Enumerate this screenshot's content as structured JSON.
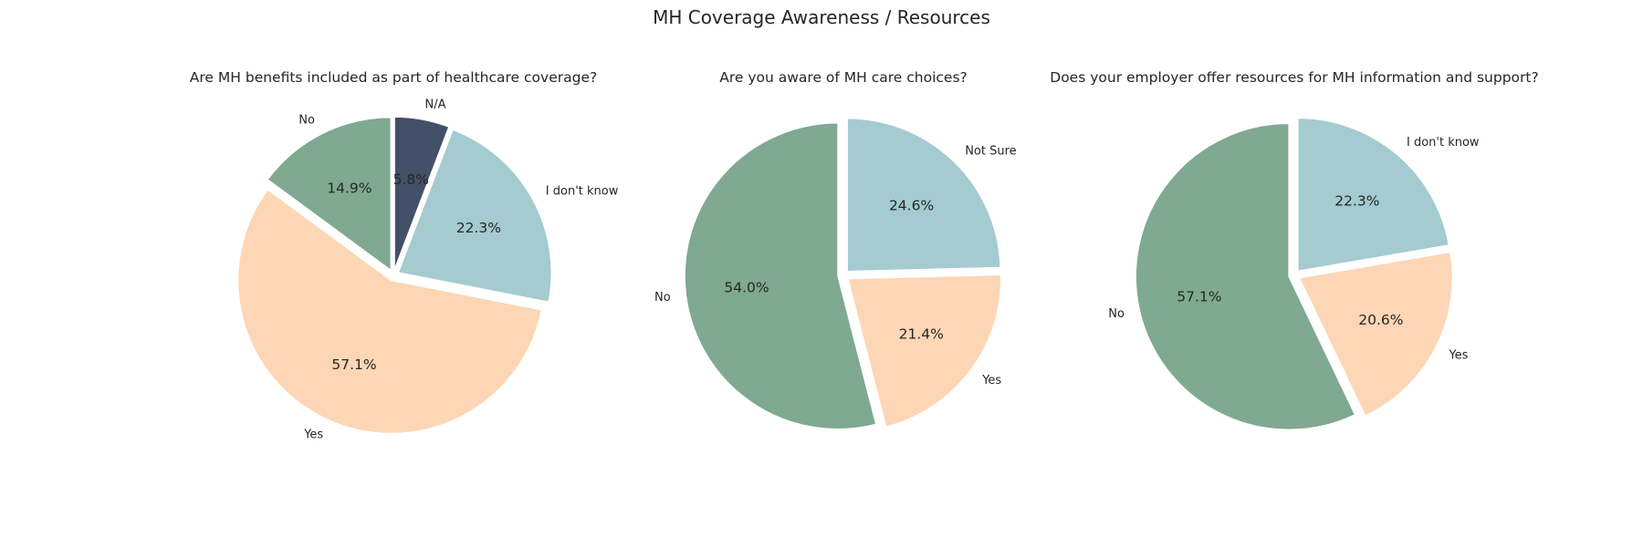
{
  "suptitle": "MH Coverage Awareness / Resources",
  "colors": {
    "green": "#7fa991",
    "peach": "#fdd6b5",
    "lightblue": "#a3cbd0",
    "navy": "#435068",
    "edge": "#ffffff"
  },
  "chart_data": [
    {
      "type": "pie",
      "title": "Are MH benefits included as part of healthcare coverage?",
      "slices": [
        {
          "label": "N/A",
          "value": 5.8,
          "pct": "5.8%",
          "color": "#435068"
        },
        {
          "label": "I don't know",
          "value": 22.3,
          "pct": "22.3%",
          "color": "#a3cbd0"
        },
        {
          "label": "Yes",
          "value": 57.1,
          "pct": "57.1%",
          "color": "#fdd6b5"
        },
        {
          "label": "No",
          "value": 14.9,
          "pct": "14.9%",
          "color": "#7fa991"
        }
      ]
    },
    {
      "type": "pie",
      "title": "Are you aware of MH care choices?",
      "slices": [
        {
          "label": "Not Sure",
          "value": 24.6,
          "pct": "24.6%",
          "color": "#a3cbd0"
        },
        {
          "label": "Yes",
          "value": 21.4,
          "pct": "21.4%",
          "color": "#fdd6b5"
        },
        {
          "label": "No",
          "value": 54.0,
          "pct": "54.0%",
          "color": "#7fa991"
        }
      ]
    },
    {
      "type": "pie",
      "title": "Does your employer offer resources for MH information and support?",
      "slices": [
        {
          "label": "I don't know",
          "value": 22.3,
          "pct": "22.3%",
          "color": "#a3cbd0"
        },
        {
          "label": "Yes",
          "value": 20.6,
          "pct": "20.6%",
          "color": "#fdd6b5"
        },
        {
          "label": "No",
          "value": 57.1,
          "pct": "57.1%",
          "color": "#7fa991"
        }
      ]
    }
  ]
}
